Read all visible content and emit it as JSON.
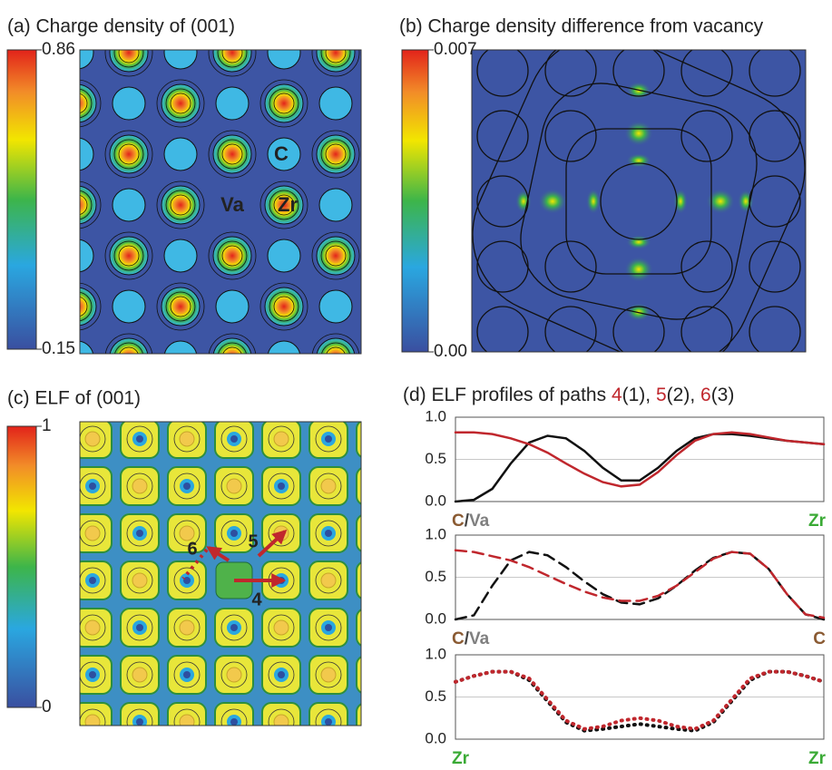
{
  "chart_data": [
    {
      "type": "map",
      "title": "(a) Charge density of (001)",
      "zlim": [
        0.15,
        0.86
      ],
      "zticks": [
        0.15,
        0.86
      ],
      "annotations": [
        "C",
        "Va",
        "Zr"
      ]
    },
    {
      "type": "map",
      "title": "(b) Charge density difference from vacancy",
      "zlim": [
        0,
        0.007
      ],
      "zticks": [
        {
          "value": 0,
          "label": "0.00"
        },
        0.007
      ]
    },
    {
      "type": "map",
      "title": "(c) ELF of (001)",
      "zlim": [
        0,
        1
      ],
      "zticks": [
        0,
        1
      ],
      "annotations": [
        "4",
        "5",
        "6"
      ]
    },
    {
      "type": "line",
      "title": [
        "(d) ELF profiles of paths ",
        "4",
        "(1), ",
        "5",
        "(2), ",
        "6",
        "(3)"
      ],
      "title_colors": [
        "#222",
        "#c0272d",
        "#222",
        "#c0272d",
        "#222",
        "#c0272d",
        "#222"
      ],
      "x": [
        0,
        0.05,
        0.1,
        0.15,
        0.2,
        0.25,
        0.3,
        0.35,
        0.4,
        0.45,
        0.5,
        0.55,
        0.6,
        0.65,
        0.7,
        0.75,
        0.8,
        0.85,
        0.9,
        0.95,
        1
      ],
      "xlim": [
        0,
        1
      ],
      "ylim": [
        0,
        1
      ],
      "yticks": [
        {
          "value": 0,
          "label": "0.0"
        },
        {
          "value": 0.5,
          "label": "0.5"
        },
        {
          "value": 1,
          "label": "1.0"
        }
      ],
      "grid": true,
      "xlabels_left": [
        {
          "text": "C",
          "color": "#8a5a32"
        },
        {
          "text": "/",
          "color": "#444"
        },
        {
          "text": "Va",
          "color": "#808080"
        }
      ],
      "xlabels_right": [
        {
          "text": "Zr",
          "color": "#3aaa35"
        }
      ],
      "series": [
        {
          "color": "#111111",
          "style": "solid",
          "values": [
            0,
            0.02,
            0.15,
            0.45,
            0.7,
            0.78,
            0.75,
            0.6,
            0.4,
            0.25,
            0.25,
            0.4,
            0.6,
            0.75,
            0.8,
            0.8,
            0.78,
            0.75,
            0.72,
            0.7,
            0.68
          ]
        },
        {
          "color": "#c0272d",
          "style": "solid",
          "values": [
            0.82,
            0.82,
            0.8,
            0.75,
            0.68,
            0.58,
            0.45,
            0.33,
            0.23,
            0.18,
            0.2,
            0.35,
            0.55,
            0.72,
            0.8,
            0.82,
            0.8,
            0.76,
            0.72,
            0.7,
            0.68
          ]
        }
      ]
    },
    {
      "type": "line",
      "x": [
        0,
        0.05,
        0.1,
        0.15,
        0.2,
        0.25,
        0.3,
        0.35,
        0.4,
        0.45,
        0.5,
        0.55,
        0.6,
        0.65,
        0.7,
        0.75,
        0.8,
        0.85,
        0.9,
        0.95,
        1
      ],
      "xlim": [
        0,
        1
      ],
      "ylim": [
        0,
        1
      ],
      "yticks": [
        {
          "value": 0,
          "label": "0.0"
        },
        {
          "value": 0.5,
          "label": "0.5"
        },
        {
          "value": 1,
          "label": "1.0"
        }
      ],
      "grid": true,
      "xlabels_left": [
        {
          "text": "C",
          "color": "#8a5a32"
        },
        {
          "text": "/",
          "color": "#444"
        },
        {
          "text": "Va",
          "color": "#808080"
        }
      ],
      "xlabels_right": [
        {
          "text": "C",
          "color": "#8a5a32"
        }
      ],
      "series": [
        {
          "color": "#111111",
          "style": "dashed",
          "values": [
            0,
            0.05,
            0.4,
            0.7,
            0.8,
            0.76,
            0.62,
            0.45,
            0.3,
            0.2,
            0.18,
            0.25,
            0.4,
            0.58,
            0.73,
            0.8,
            0.78,
            0.6,
            0.3,
            0.06,
            0
          ]
        },
        {
          "color": "#c0272d",
          "style": "dashed",
          "values": [
            0.82,
            0.8,
            0.75,
            0.7,
            0.62,
            0.52,
            0.42,
            0.33,
            0.26,
            0.22,
            0.22,
            0.28,
            0.4,
            0.56,
            0.72,
            0.8,
            0.78,
            0.6,
            0.3,
            0.06,
            0.02
          ]
        }
      ]
    },
    {
      "type": "line",
      "x": [
        0,
        0.05,
        0.1,
        0.15,
        0.2,
        0.25,
        0.3,
        0.35,
        0.4,
        0.45,
        0.5,
        0.55,
        0.6,
        0.65,
        0.7,
        0.75,
        0.8,
        0.85,
        0.9,
        0.95,
        1
      ],
      "xlim": [
        0,
        1
      ],
      "ylim": [
        0,
        1
      ],
      "yticks": [
        {
          "value": 0,
          "label": "0.0"
        },
        {
          "value": 0.5,
          "label": "0.5"
        },
        {
          "value": 1,
          "label": "1.0"
        }
      ],
      "grid": true,
      "xlabels_left": [
        {
          "text": "Zr",
          "color": "#3aaa35"
        }
      ],
      "xlabels_right": [
        {
          "text": "Zr",
          "color": "#3aaa35"
        }
      ],
      "series": [
        {
          "color": "#111111",
          "style": "dotted",
          "values": [
            0.68,
            0.75,
            0.8,
            0.8,
            0.7,
            0.45,
            0.2,
            0.1,
            0.12,
            0.15,
            0.18,
            0.15,
            0.12,
            0.1,
            0.2,
            0.45,
            0.7,
            0.8,
            0.8,
            0.75,
            0.68
          ]
        },
        {
          "color": "#c0272d",
          "style": "dotted",
          "values": [
            0.68,
            0.75,
            0.8,
            0.8,
            0.72,
            0.47,
            0.22,
            0.12,
            0.15,
            0.22,
            0.25,
            0.22,
            0.15,
            0.12,
            0.22,
            0.47,
            0.72,
            0.8,
            0.8,
            0.75,
            0.68
          ]
        }
      ]
    }
  ]
}
